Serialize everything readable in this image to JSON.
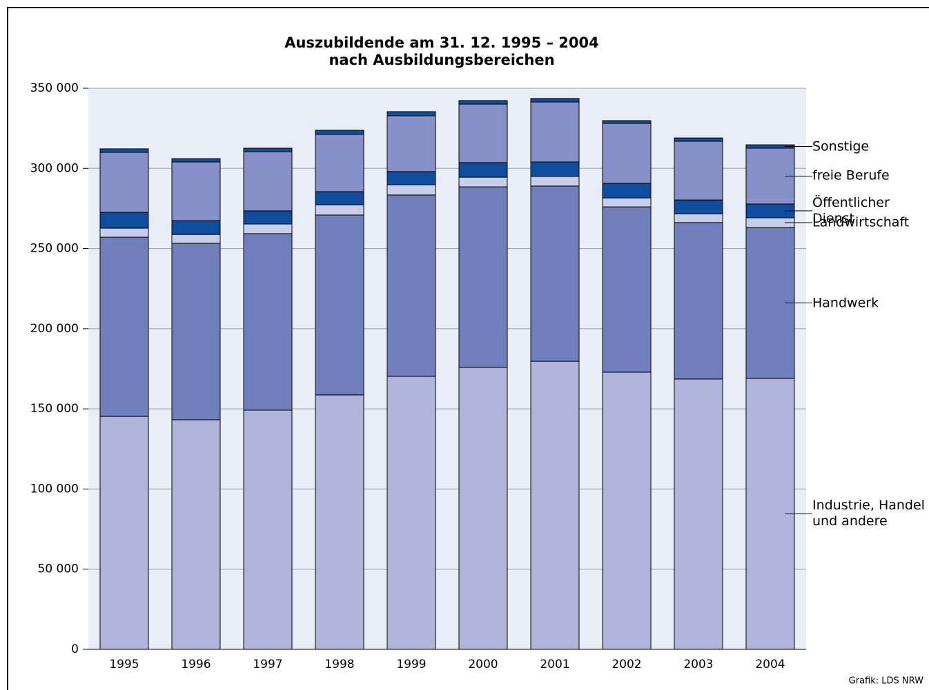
{
  "chart_data": {
    "type": "stacked_bar",
    "title": "Auszubildende am 31. 12. 1995 – 2004",
    "subtitle": "nach Ausbildungsbereichen",
    "source": "Grafik: LDS NRW",
    "categories": [
      "1995",
      "1996",
      "1997",
      "1998",
      "1999",
      "2000",
      "2001",
      "2002",
      "2003",
      "2004"
    ],
    "series": [
      {
        "name": "Industrie, Handel und andere",
        "color": "#aeb4da",
        "values": [
          145300,
          143200,
          149200,
          158700,
          170300,
          175900,
          179700,
          172900,
          168600,
          169000
        ]
      },
      {
        "name": "Handwerk",
        "color": "#6f7fbd",
        "values": [
          111800,
          110100,
          110100,
          112200,
          113100,
          112600,
          109300,
          103100,
          97600,
          94100
        ]
      },
      {
        "name": "Landwirtschaft",
        "color": "#c9cfea",
        "values": [
          5600,
          5500,
          6000,
          6400,
          6400,
          6000,
          6000,
          5600,
          5500,
          6100
        ]
      },
      {
        "name": "Öffentlicher Dienst",
        "color": "#0f4d9f",
        "values": [
          9900,
          8600,
          8200,
          8200,
          8200,
          9100,
          9000,
          9100,
          8600,
          8600
        ]
      },
      {
        "name": "freie Berufe",
        "color": "#8791c8",
        "values": [
          37400,
          36600,
          36900,
          35700,
          34800,
          36500,
          37400,
          37400,
          36600,
          34800
        ]
      },
      {
        "name": "Sonstige",
        "color": "#0f4d9f",
        "values": [
          2200,
          2100,
          2200,
          2600,
          2600,
          2200,
          2200,
          1700,
          2100,
          2100
        ]
      }
    ],
    "ylim": [
      0,
      350000
    ],
    "yticks": [
      0,
      {
        "value": 50000,
        "label": "50 000"
      },
      {
        "value": 100000,
        "label": "100 000"
      },
      {
        "value": 150000,
        "label": "150 000"
      },
      {
        "value": 200000,
        "label": "200 000"
      },
      {
        "value": 250000,
        "label": "250 000"
      },
      {
        "value": 300000,
        "label": "300 000"
      },
      {
        "value": 350000,
        "label": "350 000"
      }
    ],
    "grid": true,
    "legend": "right"
  }
}
